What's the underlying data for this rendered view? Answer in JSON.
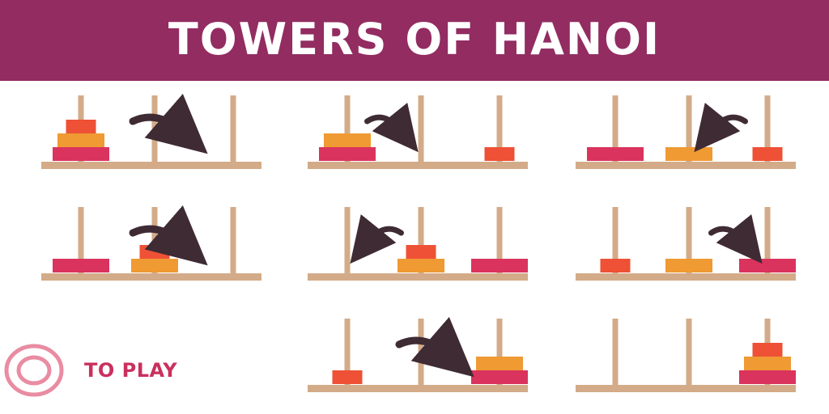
{
  "header": {
    "title": "TOWERS OF HANOI"
  },
  "play": {
    "label": "TO PLAY",
    "icon": "double-ring-icon"
  },
  "colors": {
    "header_bg": "#922c61",
    "peg": "#d3ab88",
    "disk_small": "#ee5135",
    "disk_medium": "#ef9a33",
    "disk_large": "#da335e",
    "arrow": "#3f2b33",
    "play_text": "#c9305e",
    "play_icon": "#e98ca2"
  },
  "game": {
    "disks": [
      {
        "id": "small",
        "size": 1
      },
      {
        "id": "medium",
        "size": 2
      },
      {
        "id": "large",
        "size": 3
      }
    ],
    "steps": [
      {
        "towers": [
          [
            "large",
            "medium",
            "small"
          ],
          [],
          []
        ],
        "move": {
          "from": 1,
          "to": 3
        }
      },
      {
        "towers": [
          [
            "large",
            "medium"
          ],
          [],
          [
            "small"
          ]
        ],
        "move": {
          "from": 1,
          "to": 2
        }
      },
      {
        "towers": [
          [
            "large"
          ],
          [
            "medium"
          ],
          [
            "small"
          ]
        ],
        "move": {
          "from": 3,
          "to": 2
        }
      },
      {
        "towers": [
          [
            "large"
          ],
          [
            "medium",
            "small"
          ],
          []
        ],
        "move": {
          "from": 1,
          "to": 3
        }
      },
      {
        "towers": [
          [],
          [
            "medium",
            "small"
          ],
          [
            "large"
          ]
        ],
        "move": {
          "from": 2,
          "to": 1
        }
      },
      {
        "towers": [
          [
            "small"
          ],
          [
            "medium"
          ],
          [
            "large"
          ]
        ],
        "move": {
          "from": 2,
          "to": 3
        }
      },
      {
        "towers": [
          [
            "small"
          ],
          [],
          [
            "large",
            "medium"
          ]
        ],
        "move": {
          "from": 1,
          "to": 3
        }
      },
      {
        "towers": [
          [],
          [],
          [
            "large",
            "medium",
            "small"
          ]
        ]
      }
    ]
  }
}
